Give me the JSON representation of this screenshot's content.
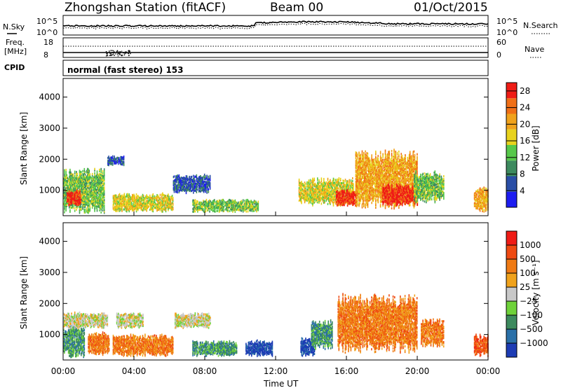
{
  "header": {
    "station": "Zhongshan Station (fitACF)",
    "beam": "Beam 00",
    "date": "01/Oct/2015"
  },
  "top_panels": {
    "noise": {
      "left_label": "N.Sky",
      "right_label": "N.Search",
      "left_ticks": [
        "10^5",
        "10^0"
      ],
      "right_ticks": [
        "10^5",
        "10^0"
      ]
    },
    "freq": {
      "left_label_1": "Freq.",
      "left_label_2": "[MHz]",
      "right_label": "Nave",
      "left_ticks": [
        "18",
        "8"
      ],
      "right_ticks": [
        "60",
        "0"
      ]
    },
    "cpid": {
      "label": "CPID",
      "text": "normal (fast stereo) 153"
    }
  },
  "chart_data": [
    {
      "type": "heatmap",
      "title": "Power",
      "xlabel": "",
      "ylabel": "Slant Range [km]",
      "xlim": [
        "00:00",
        "24:00"
      ],
      "ylim": [
        180,
        4600
      ],
      "yticks": [
        "1000",
        "2000",
        "3000",
        "4000"
      ],
      "colorbar": {
        "label": "Power [dB]",
        "ticks": [
          "4",
          "8",
          "12",
          "16",
          "20",
          "24",
          "28"
        ],
        "range": [
          0,
          30
        ],
        "colors": [
          "#1d1df0",
          "#2a4ea6",
          "#3d8a5e",
          "#57c84a",
          "#e8d21d",
          "#f0a21c",
          "#f06f16",
          "#ef1c16"
        ]
      },
      "blobs": [
        {
          "t0": 0.0,
          "t1": 2.3,
          "r0": 260,
          "r1": 1700,
          "level": 3
        },
        {
          "t0": 0.2,
          "t1": 1.0,
          "r0": 500,
          "r1": 1000,
          "level": 7
        },
        {
          "t0": 2.5,
          "t1": 3.4,
          "r0": 1800,
          "r1": 2100,
          "level": 1
        },
        {
          "t0": 2.8,
          "t1": 6.2,
          "r0": 300,
          "r1": 900,
          "level": 4
        },
        {
          "t0": 6.2,
          "t1": 8.3,
          "r0": 900,
          "r1": 1500,
          "level": 1
        },
        {
          "t0": 7.3,
          "t1": 11.0,
          "r0": 300,
          "r1": 700,
          "level": 3
        },
        {
          "t0": 13.3,
          "t1": 16.4,
          "r0": 500,
          "r1": 1400,
          "level": 4
        },
        {
          "t0": 15.4,
          "t1": 16.6,
          "r0": 500,
          "r1": 1000,
          "level": 7
        },
        {
          "t0": 16.5,
          "t1": 20.0,
          "r0": 400,
          "r1": 2300,
          "level": 5
        },
        {
          "t0": 18.0,
          "t1": 20.0,
          "r0": 500,
          "r1": 1200,
          "level": 7
        },
        {
          "t0": 19.8,
          "t1": 21.5,
          "r0": 600,
          "r1": 1600,
          "level": 3
        },
        {
          "t0": 23.2,
          "t1": 24.0,
          "r0": 300,
          "r1": 1100,
          "level": 5
        }
      ]
    },
    {
      "type": "heatmap",
      "title": "Velocity",
      "xlabel": "Time UT",
      "ylabel": "Slant Range [km]",
      "xlim": [
        "00:00",
        "24:00"
      ],
      "ylim": [
        180,
        4600
      ],
      "xticks": [
        "00:00",
        "04:00",
        "08:00",
        "12:00",
        "16:00",
        "20:00",
        "00:00"
      ],
      "yticks": [
        "1000",
        "2000",
        "3000",
        "4000"
      ],
      "colorbar": {
        "label": "Velocity [m s⁻¹]",
        "ticks": [
          "1000",
          "500",
          "100",
          "25",
          "−25",
          "−100",
          "−500",
          "−1000"
        ],
        "colors": [
          "#1d3cb4",
          "#2a70a8",
          "#3d8a5e",
          "#6fd23a",
          "#c8c8c8",
          "#f0a21c",
          "#ef7a14",
          "#ef4a12",
          "#ef1c16"
        ]
      },
      "blobs": [
        {
          "t0": 0.0,
          "t1": 1.2,
          "r0": 260,
          "r1": 1300,
          "level": 2
        },
        {
          "t0": 0.0,
          "t1": 2.5,
          "r0": 1200,
          "r1": 1700,
          "level": 4
        },
        {
          "t0": 1.4,
          "t1": 2.6,
          "r0": 300,
          "r1": 1100,
          "level": 6
        },
        {
          "t0": 2.8,
          "t1": 6.2,
          "r0": 300,
          "r1": 1000,
          "level": 6
        },
        {
          "t0": 3.0,
          "t1": 4.5,
          "r0": 1200,
          "r1": 1700,
          "level": 4
        },
        {
          "t0": 6.3,
          "t1": 8.3,
          "r0": 1200,
          "r1": 1700,
          "level": 4
        },
        {
          "t0": 7.3,
          "t1": 9.8,
          "r0": 300,
          "r1": 800,
          "level": 2
        },
        {
          "t0": 10.3,
          "t1": 11.8,
          "r0": 300,
          "r1": 800,
          "level": 0
        },
        {
          "t0": 13.4,
          "t1": 14.2,
          "r0": 300,
          "r1": 900,
          "level": 0
        },
        {
          "t0": 14.0,
          "t1": 15.2,
          "r0": 500,
          "r1": 1500,
          "level": 2
        },
        {
          "t0": 15.5,
          "t1": 20.0,
          "r0": 400,
          "r1": 2300,
          "level": 6
        },
        {
          "t0": 20.2,
          "t1": 21.5,
          "r0": 600,
          "r1": 1500,
          "level": 6
        },
        {
          "t0": 23.2,
          "t1": 24.0,
          "r0": 300,
          "r1": 1000,
          "level": 7
        }
      ]
    }
  ]
}
